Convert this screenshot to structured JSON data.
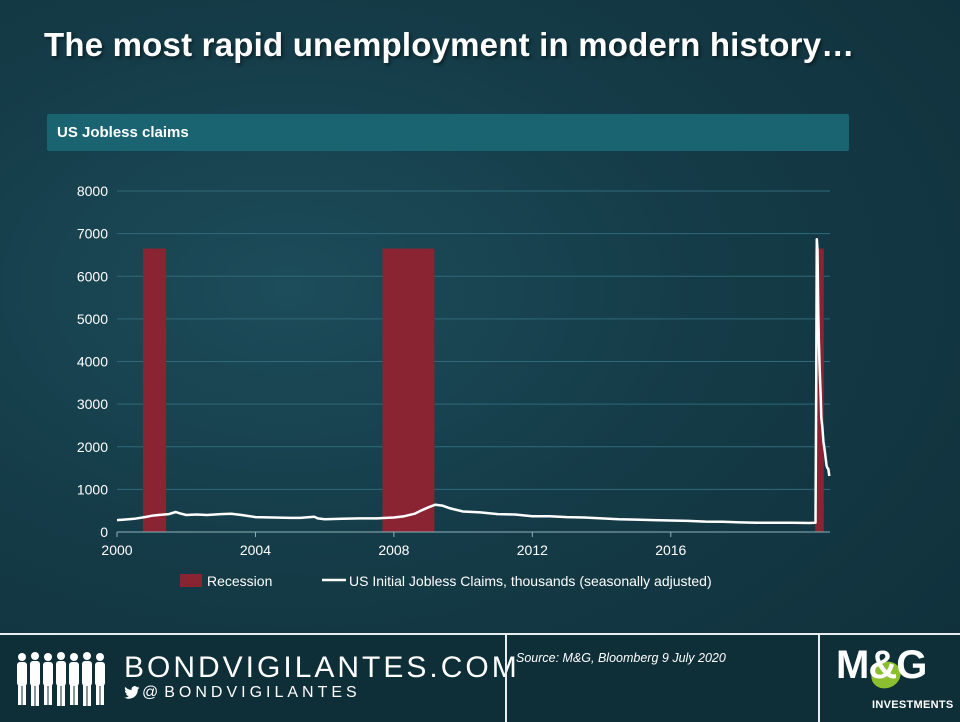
{
  "slide": {
    "title": "The most rapid unemployment in modern history…",
    "section_label": "US Jobless  claims"
  },
  "chart_data": {
    "type": "bar+line",
    "ylim": [
      0,
      8000
    ],
    "y_ticks": [
      0,
      1000,
      2000,
      3000,
      4000,
      5000,
      6000,
      7000,
      8000
    ],
    "xlim": [
      2000,
      2020.6
    ],
    "x_ticks": [
      2000,
      2004,
      2008,
      2012,
      2016
    ],
    "grid": true,
    "legend_position": "bottom",
    "colors": {
      "recession": "#8b2432",
      "claims": "#ffffff",
      "grid": "#2f6a78",
      "axis_text": "#ffffff"
    },
    "recession": {
      "name": "Recession",
      "height": 6650,
      "periods": [
        [
          2000.75,
          2001.42
        ],
        [
          2007.67,
          2009.17
        ],
        [
          2020.17,
          2020.42
        ]
      ]
    },
    "claims": {
      "name": "US Initial Jobless Claims, thousands (seasonally adjusted)",
      "points": [
        [
          2000.0,
          280
        ],
        [
          2000.2,
          290
        ],
        [
          2000.5,
          310
        ],
        [
          2000.8,
          350
        ],
        [
          2001.0,
          380
        ],
        [
          2001.2,
          400
        ],
        [
          2001.5,
          420
        ],
        [
          2001.7,
          470
        ],
        [
          2001.8,
          440
        ],
        [
          2002.0,
          400
        ],
        [
          2002.3,
          410
        ],
        [
          2002.6,
          400
        ],
        [
          2003.0,
          420
        ],
        [
          2003.3,
          430
        ],
        [
          2003.6,
          400
        ],
        [
          2004.0,
          350
        ],
        [
          2004.5,
          340
        ],
        [
          2005.0,
          330
        ],
        [
          2005.3,
          330
        ],
        [
          2005.7,
          360
        ],
        [
          2005.8,
          320
        ],
        [
          2006.0,
          300
        ],
        [
          2006.5,
          310
        ],
        [
          2007.0,
          320
        ],
        [
          2007.5,
          320
        ],
        [
          2008.0,
          340
        ],
        [
          2008.3,
          370
        ],
        [
          2008.6,
          430
        ],
        [
          2008.8,
          510
        ],
        [
          2009.0,
          580
        ],
        [
          2009.2,
          640
        ],
        [
          2009.4,
          620
        ],
        [
          2009.6,
          560
        ],
        [
          2010.0,
          480
        ],
        [
          2010.5,
          460
        ],
        [
          2011.0,
          420
        ],
        [
          2011.5,
          410
        ],
        [
          2012.0,
          370
        ],
        [
          2012.5,
          370
        ],
        [
          2013.0,
          350
        ],
        [
          2013.5,
          340
        ],
        [
          2014.0,
          320
        ],
        [
          2014.5,
          300
        ],
        [
          2015.0,
          290
        ],
        [
          2015.5,
          280
        ],
        [
          2016.0,
          270
        ],
        [
          2016.5,
          260
        ],
        [
          2017.0,
          245
        ],
        [
          2017.5,
          240
        ],
        [
          2018.0,
          225
        ],
        [
          2018.5,
          215
        ],
        [
          2019.0,
          215
        ],
        [
          2019.5,
          215
        ],
        [
          2020.0,
          210
        ],
        [
          2020.18,
          215
        ],
        [
          2020.2,
          3300
        ],
        [
          2020.22,
          6867
        ],
        [
          2020.24,
          6615
        ],
        [
          2020.26,
          5237
        ],
        [
          2020.28,
          4442
        ],
        [
          2020.3,
          3867
        ],
        [
          2020.33,
          3176
        ],
        [
          2020.35,
          2687
        ],
        [
          2020.38,
          2446
        ],
        [
          2020.41,
          2126
        ],
        [
          2020.45,
          1897
        ],
        [
          2020.5,
          1566
        ],
        [
          2020.52,
          1508
        ],
        [
          2020.55,
          1482
        ],
        [
          2020.58,
          1314
        ]
      ]
    }
  },
  "footer": {
    "brand": "BONDVIGILANTES.COM",
    "handle_at": "@",
    "handle": "BONDVIGILANTES",
    "source": "Source: M&G,  Bloomberg 9 July 2020",
    "logo_text": "M&G",
    "logo_sub": "INVESTMENTS"
  }
}
